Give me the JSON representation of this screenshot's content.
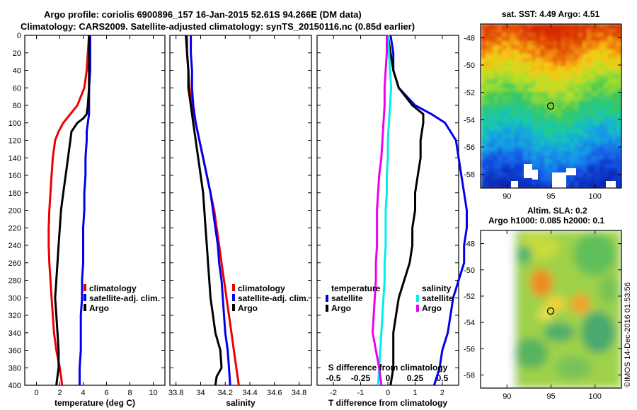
{
  "title": {
    "line1": "Argo profile: coriolis 6900896_157 16-Jan-2015 52.61S 94.266E (DM data)",
    "line2": "Climatology: CARS2009. Satellite-adjusted climatology: synTS_20150116.nc (0.85d earlier)"
  },
  "watermark": "©IMOS 14-Dec-2016 01:53:56",
  "colors": {
    "climatology": "#ee0000",
    "satellite": "#0000ee",
    "argo": "#000000",
    "s_satellite": "#00eeee",
    "s_argo": "#ee00ee"
  },
  "chart_data": [
    {
      "type": "line",
      "name": "temperature",
      "xlabel": "temperature (deg C)",
      "xlim": [
        -1,
        11
      ],
      "xticks": [
        "0",
        "2",
        "4",
        "6",
        "8",
        "10"
      ],
      "ylim": [
        0,
        400
      ],
      "yticks": [
        "0",
        "20",
        "40",
        "60",
        "80",
        "100",
        "120",
        "140",
        "160",
        "180",
        "200",
        "220",
        "240",
        "260",
        "280",
        "300",
        "320",
        "340",
        "360",
        "380",
        "400"
      ],
      "legend": [
        "climatology",
        "satellite-adj. clim.",
        "Argo"
      ],
      "series": [
        {
          "name": "climatology",
          "depth": [
            0,
            20,
            40,
            60,
            80,
            90,
            100,
            110,
            120,
            140,
            160,
            180,
            200,
            220,
            240,
            260,
            280,
            300,
            320,
            340,
            360,
            380,
            390,
            400
          ],
          "values": [
            4.5,
            4.4,
            4.3,
            4.1,
            3.5,
            2.9,
            2.3,
            1.9,
            1.6,
            1.4,
            1.3,
            1.2,
            1.1,
            1.05,
            1.05,
            1.1,
            1.2,
            1.3,
            1.4,
            1.5,
            1.7,
            2.0,
            2.1,
            2.2
          ]
        },
        {
          "name": "satellite-adj. clim.",
          "depth": [
            0,
            20,
            40,
            60,
            80,
            90,
            100,
            110,
            120,
            140,
            160,
            180,
            200,
            220,
            240,
            260,
            280,
            300,
            320,
            340,
            360,
            380,
            400
          ],
          "values": [
            4.6,
            4.6,
            4.6,
            4.5,
            4.5,
            4.5,
            4.4,
            4.3,
            4.3,
            4.2,
            4.2,
            4.1,
            4.1,
            4.0,
            4.0,
            4.0,
            3.9,
            3.9,
            3.8,
            3.8,
            3.8,
            3.7,
            3.7
          ]
        },
        {
          "name": "Argo",
          "depth": [
            0,
            20,
            40,
            60,
            80,
            90,
            95,
            100,
            110,
            120,
            140,
            160,
            180,
            200,
            220,
            240,
            260,
            280,
            300,
            320,
            340,
            360,
            380,
            390,
            400
          ],
          "values": [
            4.5,
            4.5,
            4.5,
            4.5,
            4.4,
            4.3,
            4.0,
            3.5,
            3.0,
            2.9,
            2.7,
            2.5,
            2.3,
            2.1,
            2.0,
            1.9,
            1.8,
            1.7,
            1.6,
            1.7,
            1.8,
            1.9,
            1.9,
            1.8,
            1.7
          ]
        }
      ]
    },
    {
      "type": "line",
      "name": "salinity",
      "xlabel": "salinity",
      "xlim": [
        33.75,
        34.9
      ],
      "xticks": [
        "33.8",
        "34",
        "34.2",
        "34.4",
        "34.6",
        "34.8"
      ],
      "ylim": [
        0,
        400
      ],
      "legend": [
        "climatology",
        "satellite-adj. clim.",
        "Argo"
      ],
      "series": [
        {
          "name": "climatology",
          "depth": [
            0,
            20,
            40,
            60,
            80,
            100,
            120,
            140,
            160,
            180,
            200,
            220,
            240,
            260,
            280,
            300,
            320,
            340,
            360,
            380,
            400
          ],
          "values": [
            33.89,
            33.89,
            33.9,
            33.91,
            33.93,
            33.96,
            33.99,
            34.02,
            34.05,
            34.08,
            34.11,
            34.13,
            34.15,
            34.17,
            34.19,
            34.21,
            34.23,
            34.25,
            34.27,
            34.29,
            34.31
          ]
        },
        {
          "name": "satellite-adj. clim.",
          "depth": [
            0,
            20,
            40,
            60,
            80,
            100,
            120,
            140,
            160,
            180,
            200,
            220,
            240,
            260,
            280,
            300,
            320,
            340,
            360,
            380,
            400
          ],
          "values": [
            33.92,
            33.92,
            33.93,
            33.93,
            33.94,
            33.96,
            33.99,
            34.02,
            34.05,
            34.08,
            34.1,
            34.12,
            34.14,
            34.15,
            34.17,
            34.18,
            34.19,
            34.2,
            34.22,
            34.23,
            34.24
          ]
        },
        {
          "name": "Argo",
          "depth": [
            0,
            20,
            40,
            60,
            80,
            100,
            120,
            140,
            160,
            180,
            200,
            220,
            240,
            260,
            280,
            300,
            320,
            340,
            360,
            380,
            390,
            400
          ],
          "values": [
            33.88,
            33.89,
            33.9,
            33.9,
            33.92,
            33.94,
            33.96,
            33.98,
            34.0,
            34.02,
            34.03,
            34.04,
            34.05,
            34.06,
            34.07,
            34.08,
            34.1,
            34.12,
            34.16,
            34.17,
            34.13,
            34.12
          ]
        }
      ]
    },
    {
      "type": "line",
      "name": "difference",
      "xlabel": "T difference from climatology",
      "xlim": [
        -2.6,
        2.6
      ],
      "xticks": [
        "-2",
        "-1",
        "0",
        "1",
        "2"
      ],
      "top_label": "S difference from climatology",
      "top_xticks": [
        "-0.5",
        "-0.25",
        "0",
        "0.25",
        "0.5"
      ],
      "ylim": [
        0,
        400
      ],
      "legend_left": {
        "title": "temperature",
        "items": [
          "satellite",
          "Argo"
        ]
      },
      "legend_right": {
        "title": "salinity",
        "items": [
          "satellite",
          "Argo"
        ]
      },
      "series": [
        {
          "name": "T satellite",
          "depth": [
            0,
            20,
            40,
            60,
            80,
            90,
            100,
            120,
            140,
            160,
            180,
            200,
            220,
            240,
            260,
            280,
            300,
            320,
            340,
            360,
            380,
            400
          ],
          "values": [
            0.1,
            0.2,
            0.2,
            0.4,
            1.0,
            1.6,
            2.1,
            2.5,
            2.6,
            2.7,
            2.8,
            2.9,
            2.9,
            2.8,
            2.8,
            2.6,
            2.4,
            2.3,
            2.2,
            2.0,
            1.9,
            1.7
          ]
        },
        {
          "name": "T Argo",
          "depth": [
            0,
            20,
            40,
            60,
            80,
            90,
            100,
            120,
            140,
            160,
            180,
            200,
            220,
            240,
            260,
            280,
            300,
            320,
            340,
            360,
            380,
            400
          ],
          "values": [
            0.0,
            0.1,
            0.2,
            0.4,
            0.9,
            1.3,
            1.3,
            1.2,
            1.2,
            1.1,
            1.0,
            1.0,
            0.9,
            0.9,
            0.8,
            0.6,
            0.4,
            0.3,
            0.2,
            0.2,
            0.2,
            0.1
          ]
        },
        {
          "name": "S satellite",
          "depth": [
            0,
            20,
            40,
            60,
            80,
            100,
            120,
            140,
            160,
            180,
            200,
            220,
            240,
            260,
            280,
            300,
            320,
            340,
            360,
            380,
            400
          ],
          "values": [
            0.0,
            0.01,
            0.02,
            0.03,
            0.02,
            0.01,
            0.0,
            0.0,
            -0.01,
            -0.01,
            -0.02,
            -0.02,
            -0.02,
            -0.03,
            -0.03,
            -0.04,
            -0.05,
            -0.06,
            -0.07,
            -0.08,
            -0.09
          ]
        },
        {
          "name": "S Argo",
          "depth": [
            0,
            20,
            40,
            60,
            80,
            100,
            120,
            140,
            160,
            180,
            200,
            220,
            240,
            260,
            280,
            300,
            320,
            340,
            360,
            380,
            400
          ],
          "values": [
            -0.01,
            -0.01,
            -0.02,
            -0.03,
            -0.03,
            -0.04,
            -0.05,
            -0.06,
            -0.08,
            -0.09,
            -0.1,
            -0.1,
            -0.1,
            -0.11,
            -0.11,
            -0.12,
            -0.13,
            -0.14,
            -0.11,
            -0.08,
            -0.06
          ]
        }
      ]
    },
    {
      "type": "heatmap",
      "name": "sst_map",
      "title": "sat. SST: 4.49 Argo: 4.51",
      "xticks": [
        "90",
        "95",
        "100"
      ],
      "yticks": [
        "-48",
        "-50",
        "-52",
        "-54",
        "-56",
        "-58"
      ],
      "xlim": [
        87,
        103
      ],
      "ylim": [
        -59,
        -47
      ],
      "marker": {
        "lon": 94.266,
        "lat": -52.61
      }
    },
    {
      "type": "heatmap",
      "name": "sla_map",
      "title1": "Altim. SLA: 0.2",
      "title2": "Argo h1000: 0.085 h2000: 0.1",
      "xticks": [
        "90",
        "95",
        "100"
      ],
      "yticks": [
        "-48",
        "-50",
        "-52",
        "-54",
        "-56",
        "-58"
      ],
      "xlim": [
        87,
        103
      ],
      "ylim": [
        -59,
        -47
      ],
      "marker": {
        "lon": 94.266,
        "lat": -52.61
      }
    }
  ]
}
